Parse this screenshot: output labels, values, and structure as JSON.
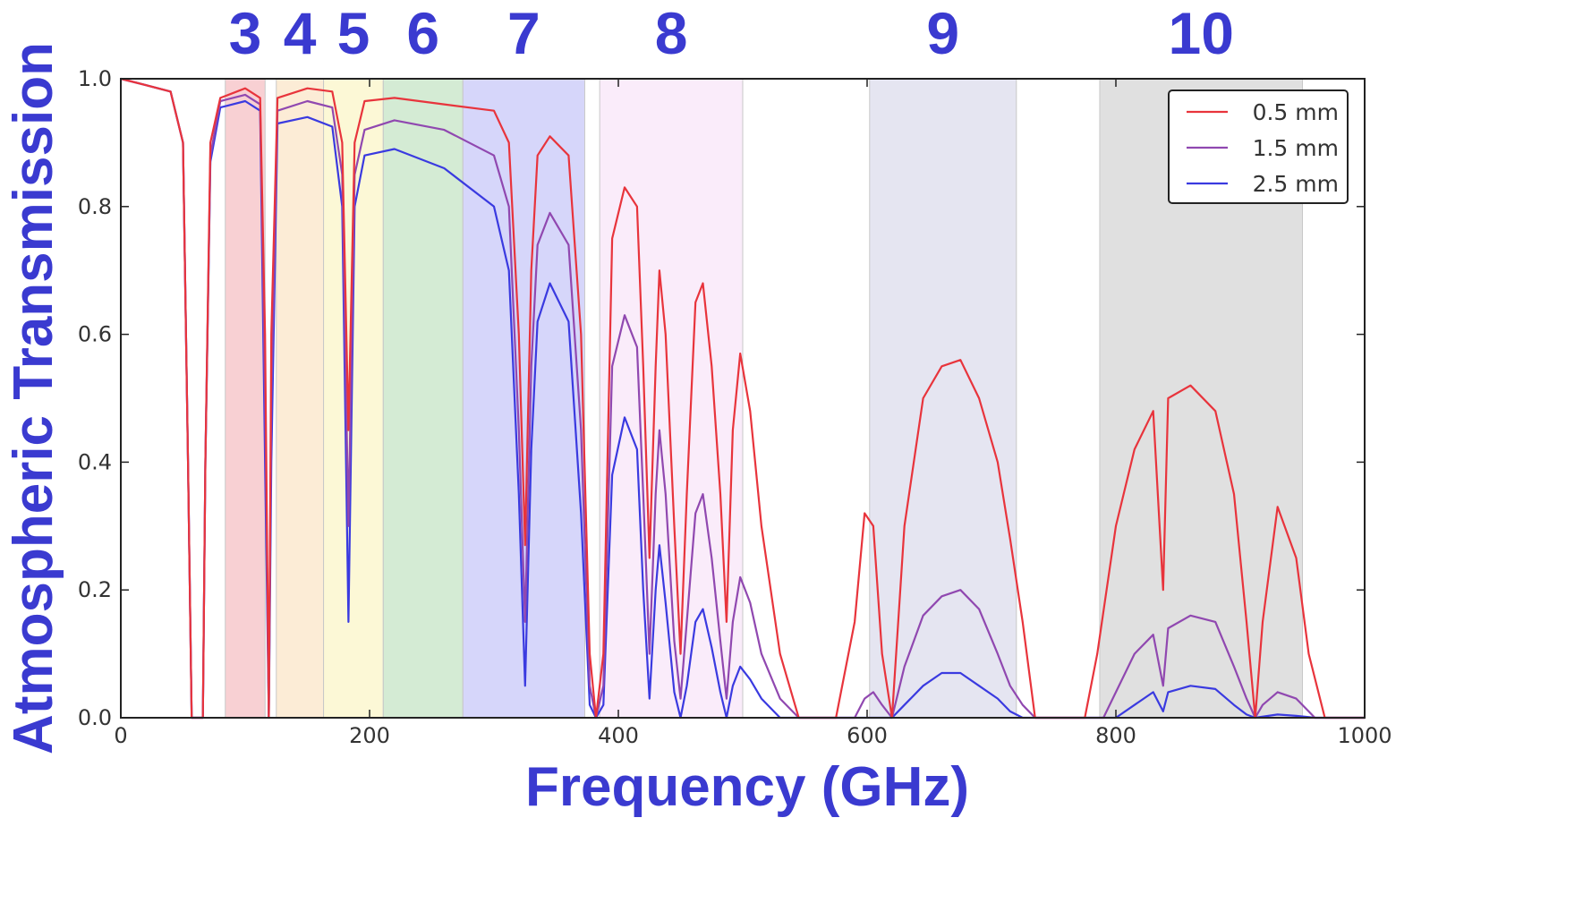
{
  "chart_data": {
    "type": "line",
    "title": "",
    "xlabel": "Frequency (GHz)",
    "ylabel": "Atmospheric Transmission",
    "xlim": [
      0,
      1000
    ],
    "ylim": [
      0,
      1.0
    ],
    "x_ticks": [
      "0",
      "200",
      "400",
      "600",
      "800",
      "1000"
    ],
    "y_ticks": [
      "0.0",
      "0.2",
      "0.4",
      "0.6",
      "0.8",
      "1.0"
    ],
    "grid": false,
    "legend_position": "top-right",
    "label_color": "#3a3ad0",
    "bands": [
      {
        "label": "3",
        "range": [
          84,
          116
        ],
        "color": "#f6c0c4"
      },
      {
        "label": "4",
        "range": [
          125,
          163
        ],
        "color": "#fbe6c8"
      },
      {
        "label": "5",
        "range": [
          163,
          211
        ],
        "color": "#fbf6c8"
      },
      {
        "label": "6",
        "range": [
          211,
          275
        ],
        "color": "#c6e4c6"
      },
      {
        "label": "7",
        "range": [
          275,
          373
        ],
        "color": "#c8c8f8"
      },
      {
        "label": "8",
        "range": [
          385,
          500
        ],
        "color": "#f8e6f8"
      },
      {
        "label": "9",
        "range": [
          602,
          720
        ],
        "color": "#dcdcec"
      },
      {
        "label": "10",
        "range": [
          787,
          950
        ],
        "color": "#d6d6d6"
      }
    ],
    "series": [
      {
        "name": "0.5 mm",
        "color": "#e8343c",
        "points": [
          [
            0,
            1.0
          ],
          [
            20,
            0.99
          ],
          [
            40,
            0.98
          ],
          [
            50,
            0.9
          ],
          [
            54,
            0.4
          ],
          [
            57,
            0.0
          ],
          [
            66,
            0.0
          ],
          [
            68,
            0.4
          ],
          [
            72,
            0.9
          ],
          [
            80,
            0.97
          ],
          [
            100,
            0.985
          ],
          [
            112,
            0.97
          ],
          [
            116,
            0.6
          ],
          [
            119,
            0.0
          ],
          [
            121,
            0.6
          ],
          [
            126,
            0.97
          ],
          [
            150,
            0.985
          ],
          [
            170,
            0.98
          ],
          [
            178,
            0.9
          ],
          [
            183,
            0.45
          ],
          [
            188,
            0.9
          ],
          [
            196,
            0.965
          ],
          [
            220,
            0.97
          ],
          [
            260,
            0.96
          ],
          [
            300,
            0.95
          ],
          [
            312,
            0.9
          ],
          [
            320,
            0.6
          ],
          [
            325,
            0.27
          ],
          [
            330,
            0.7
          ],
          [
            335,
            0.88
          ],
          [
            345,
            0.91
          ],
          [
            360,
            0.88
          ],
          [
            370,
            0.6
          ],
          [
            377,
            0.1
          ],
          [
            382,
            0.0
          ],
          [
            388,
            0.1
          ],
          [
            395,
            0.75
          ],
          [
            405,
            0.83
          ],
          [
            415,
            0.8
          ],
          [
            420,
            0.55
          ],
          [
            425,
            0.25
          ],
          [
            430,
            0.55
          ],
          [
            433,
            0.7
          ],
          [
            438,
            0.6
          ],
          [
            445,
            0.3
          ],
          [
            450,
            0.1
          ],
          [
            455,
            0.35
          ],
          [
            462,
            0.65
          ],
          [
            468,
            0.68
          ],
          [
            475,
            0.55
          ],
          [
            482,
            0.35
          ],
          [
            487,
            0.15
          ],
          [
            492,
            0.45
          ],
          [
            498,
            0.57
          ],
          [
            506,
            0.48
          ],
          [
            515,
            0.3
          ],
          [
            530,
            0.1
          ],
          [
            545,
            0.0
          ],
          [
            575,
            0.0
          ],
          [
            590,
            0.15
          ],
          [
            598,
            0.32
          ],
          [
            605,
            0.3
          ],
          [
            612,
            0.1
          ],
          [
            620,
            0.0
          ],
          [
            630,
            0.3
          ],
          [
            645,
            0.5
          ],
          [
            660,
            0.55
          ],
          [
            675,
            0.56
          ],
          [
            690,
            0.5
          ],
          [
            705,
            0.4
          ],
          [
            715,
            0.28
          ],
          [
            725,
            0.15
          ],
          [
            735,
            0.0
          ],
          [
            775,
            0.0
          ],
          [
            785,
            0.1
          ],
          [
            800,
            0.3
          ],
          [
            815,
            0.42
          ],
          [
            830,
            0.48
          ],
          [
            838,
            0.2
          ],
          [
            842,
            0.5
          ],
          [
            860,
            0.52
          ],
          [
            880,
            0.48
          ],
          [
            895,
            0.35
          ],
          [
            905,
            0.15
          ],
          [
            912,
            0.0
          ],
          [
            918,
            0.15
          ],
          [
            930,
            0.33
          ],
          [
            945,
            0.25
          ],
          [
            955,
            0.1
          ],
          [
            968,
            0.0
          ],
          [
            1000,
            0.0
          ]
        ]
      },
      {
        "name": "1.5 mm",
        "color": "#9048b0",
        "points": [
          [
            0,
            1.0
          ],
          [
            20,
            0.99
          ],
          [
            40,
            0.98
          ],
          [
            50,
            0.9
          ],
          [
            54,
            0.4
          ],
          [
            57,
            0.0
          ],
          [
            66,
            0.0
          ],
          [
            68,
            0.4
          ],
          [
            72,
            0.88
          ],
          [
            80,
            0.965
          ],
          [
            100,
            0.975
          ],
          [
            112,
            0.96
          ],
          [
            116,
            0.5
          ],
          [
            119,
            0.0
          ],
          [
            121,
            0.5
          ],
          [
            126,
            0.95
          ],
          [
            150,
            0.965
          ],
          [
            170,
            0.955
          ],
          [
            178,
            0.85
          ],
          [
            183,
            0.3
          ],
          [
            188,
            0.85
          ],
          [
            196,
            0.92
          ],
          [
            220,
            0.935
          ],
          [
            260,
            0.92
          ],
          [
            300,
            0.88
          ],
          [
            312,
            0.8
          ],
          [
            320,
            0.45
          ],
          [
            325,
            0.15
          ],
          [
            330,
            0.55
          ],
          [
            335,
            0.74
          ],
          [
            345,
            0.79
          ],
          [
            360,
            0.74
          ],
          [
            370,
            0.45
          ],
          [
            377,
            0.05
          ],
          [
            382,
            0.0
          ],
          [
            388,
            0.05
          ],
          [
            395,
            0.55
          ],
          [
            405,
            0.63
          ],
          [
            415,
            0.58
          ],
          [
            420,
            0.35
          ],
          [
            425,
            0.1
          ],
          [
            430,
            0.35
          ],
          [
            433,
            0.45
          ],
          [
            438,
            0.35
          ],
          [
            445,
            0.12
          ],
          [
            450,
            0.03
          ],
          [
            455,
            0.15
          ],
          [
            462,
            0.32
          ],
          [
            468,
            0.35
          ],
          [
            475,
            0.25
          ],
          [
            482,
            0.12
          ],
          [
            487,
            0.03
          ],
          [
            492,
            0.15
          ],
          [
            498,
            0.22
          ],
          [
            506,
            0.18
          ],
          [
            515,
            0.1
          ],
          [
            530,
            0.03
          ],
          [
            545,
            0.0
          ],
          [
            590,
            0.0
          ],
          [
            598,
            0.03
          ],
          [
            605,
            0.04
          ],
          [
            612,
            0.02
          ],
          [
            620,
            0.0
          ],
          [
            630,
            0.08
          ],
          [
            645,
            0.16
          ],
          [
            660,
            0.19
          ],
          [
            675,
            0.2
          ],
          [
            690,
            0.17
          ],
          [
            705,
            0.1
          ],
          [
            715,
            0.05
          ],
          [
            725,
            0.02
          ],
          [
            735,
            0.0
          ],
          [
            790,
            0.0
          ],
          [
            800,
            0.04
          ],
          [
            815,
            0.1
          ],
          [
            830,
            0.13
          ],
          [
            838,
            0.05
          ],
          [
            842,
            0.14
          ],
          [
            860,
            0.16
          ],
          [
            880,
            0.15
          ],
          [
            895,
            0.08
          ],
          [
            905,
            0.03
          ],
          [
            912,
            0.0
          ],
          [
            918,
            0.02
          ],
          [
            930,
            0.04
          ],
          [
            945,
            0.03
          ],
          [
            960,
            0.0
          ],
          [
            1000,
            0.0
          ]
        ]
      },
      {
        "name": "2.5 mm",
        "color": "#3a3ae0",
        "points": [
          [
            0,
            1.0
          ],
          [
            20,
            0.99
          ],
          [
            40,
            0.98
          ],
          [
            50,
            0.9
          ],
          [
            54,
            0.4
          ],
          [
            57,
            0.0
          ],
          [
            66,
            0.0
          ],
          [
            68,
            0.4
          ],
          [
            72,
            0.87
          ],
          [
            80,
            0.955
          ],
          [
            100,
            0.965
          ],
          [
            112,
            0.95
          ],
          [
            116,
            0.4
          ],
          [
            119,
            0.0
          ],
          [
            121,
            0.4
          ],
          [
            126,
            0.93
          ],
          [
            150,
            0.94
          ],
          [
            170,
            0.925
          ],
          [
            178,
            0.8
          ],
          [
            183,
            0.15
          ],
          [
            188,
            0.8
          ],
          [
            196,
            0.88
          ],
          [
            220,
            0.89
          ],
          [
            260,
            0.86
          ],
          [
            300,
            0.8
          ],
          [
            312,
            0.7
          ],
          [
            320,
            0.35
          ],
          [
            325,
            0.05
          ],
          [
            330,
            0.42
          ],
          [
            335,
            0.62
          ],
          [
            345,
            0.68
          ],
          [
            360,
            0.62
          ],
          [
            370,
            0.32
          ],
          [
            377,
            0.02
          ],
          [
            382,
            0.0
          ],
          [
            388,
            0.02
          ],
          [
            395,
            0.38
          ],
          [
            405,
            0.47
          ],
          [
            415,
            0.42
          ],
          [
            420,
            0.2
          ],
          [
            425,
            0.03
          ],
          [
            430,
            0.2
          ],
          [
            433,
            0.27
          ],
          [
            438,
            0.18
          ],
          [
            445,
            0.04
          ],
          [
            450,
            0.0
          ],
          [
            455,
            0.05
          ],
          [
            462,
            0.15
          ],
          [
            468,
            0.17
          ],
          [
            475,
            0.11
          ],
          [
            482,
            0.04
          ],
          [
            487,
            0.0
          ],
          [
            492,
            0.05
          ],
          [
            498,
            0.08
          ],
          [
            506,
            0.06
          ],
          [
            515,
            0.03
          ],
          [
            530,
            0.0
          ],
          [
            620,
            0.0
          ],
          [
            630,
            0.02
          ],
          [
            645,
            0.05
          ],
          [
            660,
            0.07
          ],
          [
            675,
            0.07
          ],
          [
            690,
            0.05
          ],
          [
            705,
            0.03
          ],
          [
            715,
            0.01
          ],
          [
            725,
            0.0
          ],
          [
            800,
            0.0
          ],
          [
            815,
            0.02
          ],
          [
            830,
            0.04
          ],
          [
            838,
            0.01
          ],
          [
            842,
            0.04
          ],
          [
            860,
            0.05
          ],
          [
            880,
            0.045
          ],
          [
            895,
            0.02
          ],
          [
            905,
            0.005
          ],
          [
            912,
            0.0
          ],
          [
            930,
            0.005
          ],
          [
            945,
            0.003
          ],
          [
            960,
            0.0
          ],
          [
            1000,
            0.0
          ]
        ]
      }
    ]
  }
}
